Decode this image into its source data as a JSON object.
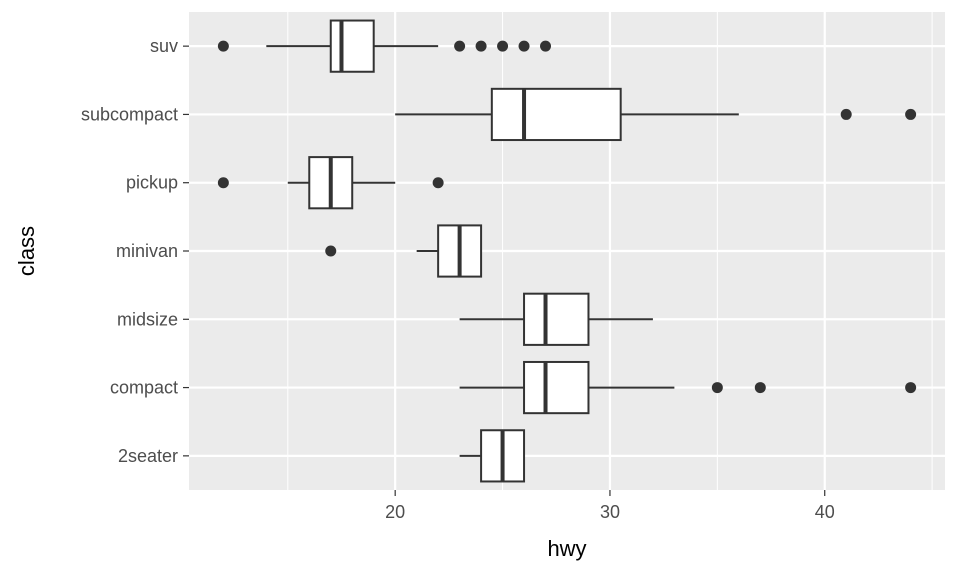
{
  "chart_data": {
    "type": "boxplot",
    "orientation": "horizontal",
    "title": "",
    "xlabel": "hwy",
    "ylabel": "class",
    "xlim": [
      10.4,
      45.6
    ],
    "x_ticks": [
      20,
      30,
      40
    ],
    "x_minor_ticks": [
      15,
      25,
      35,
      45
    ],
    "grid": true,
    "categories": [
      "2seater",
      "compact",
      "midsize",
      "minivan",
      "pickup",
      "subcompact",
      "suv"
    ],
    "boxes": [
      {
        "name": "2seater",
        "min": 23,
        "q1": 24,
        "median": 25,
        "q3": 26,
        "max": 26,
        "outliers": []
      },
      {
        "name": "compact",
        "min": 23,
        "q1": 26,
        "median": 27,
        "q3": 29,
        "max": 33,
        "outliers": [
          35,
          37,
          44
        ]
      },
      {
        "name": "midsize",
        "min": 23,
        "q1": 26,
        "median": 27,
        "q3": 29,
        "max": 32,
        "outliers": []
      },
      {
        "name": "minivan",
        "min": 21,
        "q1": 22,
        "median": 23,
        "q3": 24,
        "max": 24,
        "outliers": [
          17
        ]
      },
      {
        "name": "pickup",
        "min": 15,
        "q1": 16,
        "median": 17,
        "q3": 18,
        "max": 20,
        "outliers": [
          12,
          22
        ]
      },
      {
        "name": "subcompact",
        "min": 20,
        "q1": 24.5,
        "median": 26,
        "q3": 30.5,
        "max": 36,
        "outliers": [
          41,
          44
        ]
      },
      {
        "name": "suv",
        "min": 14,
        "q1": 17,
        "median": 17.5,
        "q3": 19,
        "max": 22,
        "outliers": [
          12,
          23,
          24,
          25,
          26,
          27
        ]
      }
    ],
    "colors": {
      "panel": "#EBEBEB",
      "grid": "#FFFFFF",
      "box_line": "#333333",
      "box_fill": "#FFFFFF"
    }
  }
}
